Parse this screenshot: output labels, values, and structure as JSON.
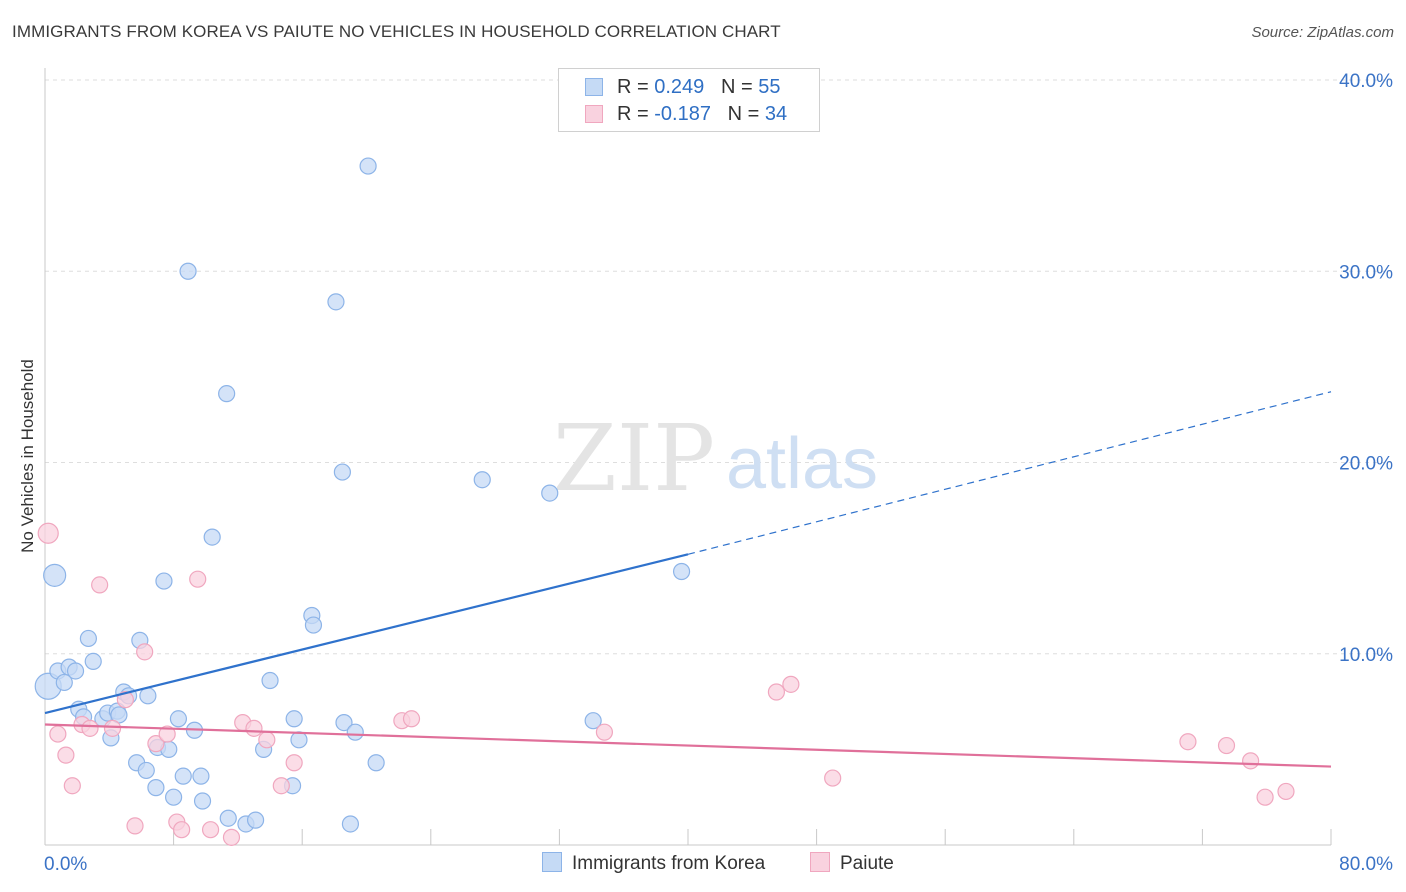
{
  "title": "IMMIGRANTS FROM KOREA VS PAIUTE NO VEHICLES IN HOUSEHOLD CORRELATION CHART",
  "source": "Source: ZipAtlas.com",
  "watermark": {
    "zip": "ZIP",
    "atlas": "atlas"
  },
  "legend": {
    "r_label": "R =",
    "n_label": "N =",
    "rows": [
      {
        "r": "0.249",
        "n": "55"
      },
      {
        "r": "-0.187",
        "n": "34"
      }
    ]
  },
  "chart_data": {
    "type": "scatter",
    "xlabel": "",
    "ylabel": "No Vehicles in Household",
    "xlim": [
      0,
      80
    ],
    "ylim": [
      0,
      40
    ],
    "x_ticks": [
      "0.0%",
      "80.0%"
    ],
    "y_ticks": [
      "10.0%",
      "20.0%",
      "30.0%",
      "40.0%"
    ],
    "y_tick_values": [
      10,
      20,
      30,
      40
    ],
    "grid": "horizontal-dashed",
    "legend_position": "top-center",
    "series": [
      {
        "name": "Immigrants from Korea",
        "color": "#8db4e8",
        "fill": "#c5daf5",
        "line_color": "#2f72cc",
        "trend": {
          "x": [
            0,
            40
          ],
          "y": [
            6.9,
            15.2
          ],
          "extend_to_x": 80,
          "extend_y": 23.7
        },
        "points": [
          [
            0.2,
            8.3,
            26
          ],
          [
            0.6,
            14.1,
            22
          ],
          [
            0.8,
            9.1,
            16
          ],
          [
            1.2,
            8.5,
            16
          ],
          [
            1.5,
            9.3,
            16
          ],
          [
            1.9,
            9.1,
            16
          ],
          [
            2.7,
            10.8,
            16
          ],
          [
            3.0,
            9.6,
            16
          ],
          [
            2.1,
            7.1,
            16
          ],
          [
            2.4,
            6.7,
            16
          ],
          [
            3.6,
            6.6,
            16
          ],
          [
            3.9,
            6.9,
            16
          ],
          [
            4.1,
            5.6,
            16
          ],
          [
            4.5,
            7.0,
            16
          ],
          [
            4.6,
            6.8,
            16
          ],
          [
            4.9,
            8.0,
            16
          ],
          [
            5.2,
            7.8,
            16
          ],
          [
            5.7,
            4.3,
            16
          ],
          [
            5.9,
            10.7,
            16
          ],
          [
            6.3,
            3.9,
            16
          ],
          [
            6.4,
            7.8,
            16
          ],
          [
            6.9,
            3.0,
            16
          ],
          [
            7.0,
            5.1,
            16
          ],
          [
            7.4,
            13.8,
            16
          ],
          [
            7.7,
            5.0,
            16
          ],
          [
            8.0,
            2.5,
            16
          ],
          [
            8.3,
            6.6,
            16
          ],
          [
            8.6,
            3.6,
            16
          ],
          [
            8.9,
            30.0,
            16
          ],
          [
            9.3,
            6.0,
            16
          ],
          [
            9.7,
            3.6,
            16
          ],
          [
            9.8,
            2.3,
            16
          ],
          [
            10.4,
            16.1,
            16
          ],
          [
            11.3,
            23.6,
            16
          ],
          [
            11.4,
            1.4,
            16
          ],
          [
            12.5,
            1.1,
            16
          ],
          [
            13.1,
            1.3,
            16
          ],
          [
            13.6,
            5.0,
            16
          ],
          [
            14.0,
            8.6,
            16
          ],
          [
            15.4,
            3.1,
            16
          ],
          [
            15.5,
            6.6,
            16
          ],
          [
            15.8,
            5.5,
            16
          ],
          [
            16.6,
            12.0,
            16
          ],
          [
            16.7,
            11.5,
            16
          ],
          [
            18.1,
            28.4,
            16
          ],
          [
            18.5,
            19.5,
            16
          ],
          [
            18.6,
            6.4,
            16
          ],
          [
            19.0,
            1.1,
            16
          ],
          [
            19.3,
            5.9,
            16
          ],
          [
            20.1,
            35.5,
            16
          ],
          [
            20.6,
            4.3,
            16
          ],
          [
            27.2,
            19.1,
            16
          ],
          [
            31.4,
            18.4,
            16
          ],
          [
            34.1,
            6.5,
            16
          ],
          [
            39.6,
            14.3,
            16
          ]
        ]
      },
      {
        "name": "Paiute",
        "color": "#f0a7bf",
        "fill": "#f9d2df",
        "line_color": "#e0709a",
        "trend": {
          "x": [
            0,
            80
          ],
          "y": [
            6.3,
            4.1
          ]
        },
        "points": [
          [
            0.2,
            16.3,
            20
          ],
          [
            0.8,
            5.8,
            16
          ],
          [
            1.3,
            4.7,
            16
          ],
          [
            1.7,
            3.1,
            16
          ],
          [
            2.3,
            6.3,
            16
          ],
          [
            2.8,
            6.1,
            16
          ],
          [
            3.4,
            13.6,
            16
          ],
          [
            4.2,
            6.1,
            16
          ],
          [
            5.0,
            7.6,
            16
          ],
          [
            5.6,
            1.0,
            16
          ],
          [
            6.2,
            10.1,
            16
          ],
          [
            6.9,
            5.3,
            16
          ],
          [
            7.6,
            5.8,
            16
          ],
          [
            8.2,
            1.2,
            16
          ],
          [
            8.5,
            0.8,
            16
          ],
          [
            9.5,
            13.9,
            16
          ],
          [
            10.3,
            0.8,
            16
          ],
          [
            11.6,
            0.4,
            16
          ],
          [
            12.3,
            6.4,
            16
          ],
          [
            13.0,
            6.1,
            16
          ],
          [
            13.8,
            5.5,
            16
          ],
          [
            14.7,
            3.1,
            16
          ],
          [
            15.5,
            4.3,
            16
          ],
          [
            22.2,
            6.5,
            16
          ],
          [
            22.8,
            6.6,
            16
          ],
          [
            34.8,
            5.9,
            16
          ],
          [
            45.5,
            8.0,
            16
          ],
          [
            46.4,
            8.4,
            16
          ],
          [
            49.0,
            3.5,
            16
          ],
          [
            71.1,
            5.4,
            16
          ],
          [
            73.5,
            5.2,
            16
          ],
          [
            75.0,
            4.4,
            16
          ],
          [
            75.9,
            2.5,
            16
          ],
          [
            77.2,
            2.8,
            16
          ]
        ]
      }
    ]
  }
}
